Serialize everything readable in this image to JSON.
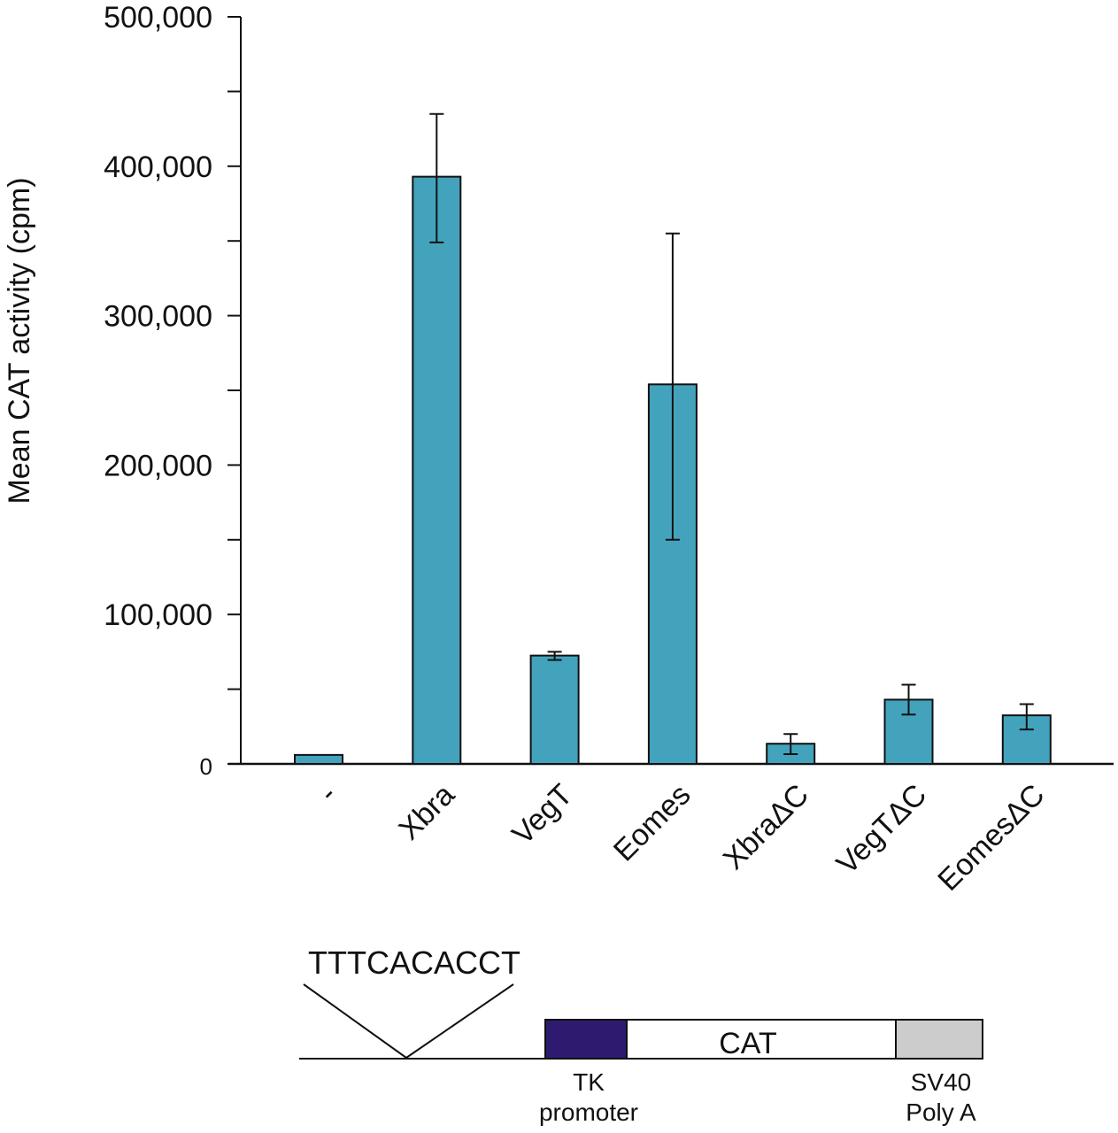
{
  "chart_data": {
    "type": "bar",
    "title": "",
    "xlabel": "",
    "ylabel": "Mean CAT activity (cpm)",
    "ylim": [
      0,
      500000
    ],
    "yticks_major": [
      0,
      100000,
      200000,
      300000,
      400000,
      500000
    ],
    "ytick_labels": [
      "0",
      "100,000",
      "200,000",
      "300,000",
      "400,000",
      "500,000"
    ],
    "yticks_minor_step": 50000,
    "grid": false,
    "bar_color": "#43a3bd",
    "categories": [
      "-",
      "Xbra",
      "VegT",
      "Eomes",
      "XbraΔC",
      "VegTΔC",
      "EomesΔC"
    ],
    "values": [
      6000,
      393000,
      72500,
      254000,
      13500,
      43000,
      32500
    ],
    "error_low": [
      null,
      349000,
      69500,
      150000,
      6500,
      33000,
      23000
    ],
    "error_high": [
      null,
      435000,
      75000,
      355000,
      20000,
      53000,
      40000
    ]
  },
  "diagram": {
    "insert_sequence": "TTTCACACCT",
    "cat_label": "CAT",
    "tk_label_1": "TK",
    "tk_label_2": "promoter",
    "sv40_label_1": "SV40",
    "sv40_label_2": "Poly A",
    "tk_color": "#2e1a6e",
    "sv40_color": "#cccccc"
  }
}
